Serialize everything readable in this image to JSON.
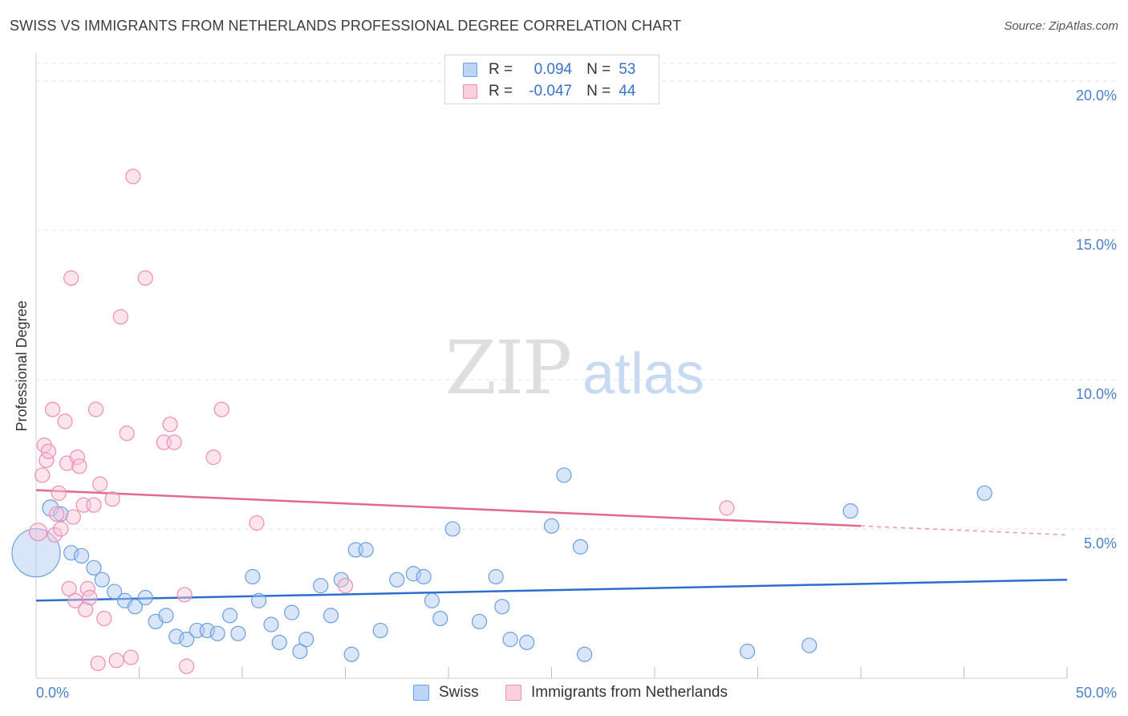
{
  "header": {
    "title": "SWISS VS IMMIGRANTS FROM NETHERLANDS PROFESSIONAL DEGREE CORRELATION CHART",
    "source": "Source: ZipAtlas.com"
  },
  "watermark": {
    "zip": "ZIP",
    "atlas": "atlas"
  },
  "legend": {
    "r_label": "R =",
    "n_label": "N =",
    "rows": [
      {
        "r": "0.094",
        "n": "53"
      },
      {
        "r": "-0.047",
        "n": "44"
      }
    ]
  },
  "chart_data": {
    "type": "scatter",
    "title": "SWISS VS IMMIGRANTS FROM NETHERLANDS PROFESSIONAL DEGREE CORRELATION CHART",
    "xlabel": "",
    "ylabel": "Professional Degree",
    "xlim": [
      0,
      50
    ],
    "ylim": [
      0,
      20.8
    ],
    "y_ticks": [
      5,
      10,
      15,
      20
    ],
    "y_tick_labels": [
      "5.0%",
      "10.0%",
      "15.0%",
      "20.0%"
    ],
    "x_tick_labels": [
      "0.0%",
      "50.0%"
    ],
    "grid": "horizontal dashed",
    "legend_position": "top-center",
    "colors": {
      "swiss": "#6a9fe0",
      "netherlands": "#f08cb0",
      "swiss_line": "#2a6fcf",
      "netherlands_line": "#e2688f"
    },
    "series": [
      {
        "name": "Swiss",
        "r": 0.094,
        "n": 53,
        "trend": {
          "x": [
            0,
            50
          ],
          "y": [
            2.6,
            3.3
          ]
        },
        "points": [
          [
            0.0,
            4.2,
            30
          ],
          [
            0.7,
            5.7,
            10
          ],
          [
            1.2,
            5.5,
            9
          ],
          [
            1.7,
            4.2,
            9
          ],
          [
            2.2,
            4.1,
            9
          ],
          [
            2.8,
            3.7,
            9
          ],
          [
            3.2,
            3.3,
            9
          ],
          [
            3.8,
            2.9,
            9
          ],
          [
            4.3,
            2.6,
            9
          ],
          [
            4.8,
            2.4,
            9
          ],
          [
            5.3,
            2.7,
            9
          ],
          [
            5.8,
            1.9,
            9
          ],
          [
            6.3,
            2.1,
            9
          ],
          [
            6.8,
            1.4,
            9
          ],
          [
            7.3,
            1.3,
            9
          ],
          [
            7.8,
            1.6,
            9
          ],
          [
            8.3,
            1.6,
            9
          ],
          [
            8.8,
            1.5,
            9
          ],
          [
            9.4,
            2.1,
            9
          ],
          [
            9.8,
            1.5,
            9
          ],
          [
            10.5,
            3.4,
            9
          ],
          [
            10.8,
            2.6,
            9
          ],
          [
            11.4,
            1.8,
            9
          ],
          [
            11.8,
            1.2,
            9
          ],
          [
            12.4,
            2.2,
            9
          ],
          [
            12.8,
            0.9,
            9
          ],
          [
            13.1,
            1.3,
            9
          ],
          [
            13.8,
            3.1,
            9
          ],
          [
            14.3,
            2.1,
            9
          ],
          [
            14.8,
            3.3,
            9
          ],
          [
            15.3,
            0.8,
            9
          ],
          [
            15.5,
            4.3,
            9
          ],
          [
            16.0,
            4.3,
            9
          ],
          [
            16.7,
            1.6,
            9
          ],
          [
            17.5,
            3.3,
            9
          ],
          [
            18.3,
            3.5,
            9
          ],
          [
            18.8,
            3.4,
            9
          ],
          [
            19.2,
            2.6,
            9
          ],
          [
            19.6,
            2.0,
            9
          ],
          [
            20.2,
            5.0,
            9
          ],
          [
            21.5,
            1.9,
            9
          ],
          [
            22.3,
            3.4,
            9
          ],
          [
            22.6,
            2.4,
            9
          ],
          [
            23.0,
            1.3,
            9
          ],
          [
            23.8,
            1.2,
            9
          ],
          [
            25.0,
            5.1,
            9
          ],
          [
            25.6,
            6.8,
            9
          ],
          [
            26.4,
            4.4,
            9
          ],
          [
            26.6,
            0.8,
            9
          ],
          [
            34.5,
            0.9,
            9
          ],
          [
            37.5,
            1.1,
            9
          ],
          [
            39.5,
            5.6,
            9
          ],
          [
            46.0,
            6.2,
            9
          ]
        ]
      },
      {
        "name": "Immigrants from Netherlands",
        "r": -0.047,
        "n": 44,
        "trend": {
          "x": [
            0,
            40
          ],
          "y": [
            6.3,
            5.1
          ],
          "dashed_to": [
            50,
            4.8
          ]
        },
        "points": [
          [
            0.1,
            4.9,
            11
          ],
          [
            0.3,
            6.8,
            9
          ],
          [
            0.4,
            7.8,
            9
          ],
          [
            0.5,
            7.3,
            9
          ],
          [
            0.6,
            7.6,
            9
          ],
          [
            0.8,
            9.0,
            9
          ],
          [
            0.9,
            4.8,
            9
          ],
          [
            1.0,
            5.5,
            9
          ],
          [
            1.1,
            6.2,
            9
          ],
          [
            1.2,
            5.0,
            9
          ],
          [
            1.4,
            8.6,
            9
          ],
          [
            1.5,
            7.2,
            9
          ],
          [
            1.6,
            3.0,
            9
          ],
          [
            1.7,
            13.4,
            9
          ],
          [
            1.8,
            5.4,
            9
          ],
          [
            1.9,
            2.6,
            9
          ],
          [
            2.0,
            7.4,
            9
          ],
          [
            2.1,
            7.1,
            9
          ],
          [
            2.3,
            5.8,
            9
          ],
          [
            2.4,
            2.3,
            9
          ],
          [
            2.5,
            3.0,
            9
          ],
          [
            2.6,
            2.7,
            9
          ],
          [
            2.8,
            5.8,
            9
          ],
          [
            2.9,
            9.0,
            9
          ],
          [
            3.0,
            0.5,
            9
          ],
          [
            3.1,
            6.5,
            9
          ],
          [
            3.3,
            2.0,
            9
          ],
          [
            3.7,
            6.0,
            9
          ],
          [
            3.9,
            0.6,
            9
          ],
          [
            4.1,
            12.1,
            9
          ],
          [
            4.4,
            8.2,
            9
          ],
          [
            4.6,
            0.7,
            9
          ],
          [
            4.7,
            16.8,
            9
          ],
          [
            5.3,
            13.4,
            9
          ],
          [
            6.2,
            7.9,
            9
          ],
          [
            6.5,
            8.5,
            9
          ],
          [
            6.7,
            7.9,
            9
          ],
          [
            7.2,
            2.8,
            9
          ],
          [
            7.3,
            0.4,
            9
          ],
          [
            8.6,
            7.4,
            9
          ],
          [
            9.0,
            9.0,
            9
          ],
          [
            10.7,
            5.2,
            9
          ],
          [
            15.0,
            3.1,
            9
          ],
          [
            33.5,
            5.7,
            9
          ]
        ]
      }
    ]
  }
}
